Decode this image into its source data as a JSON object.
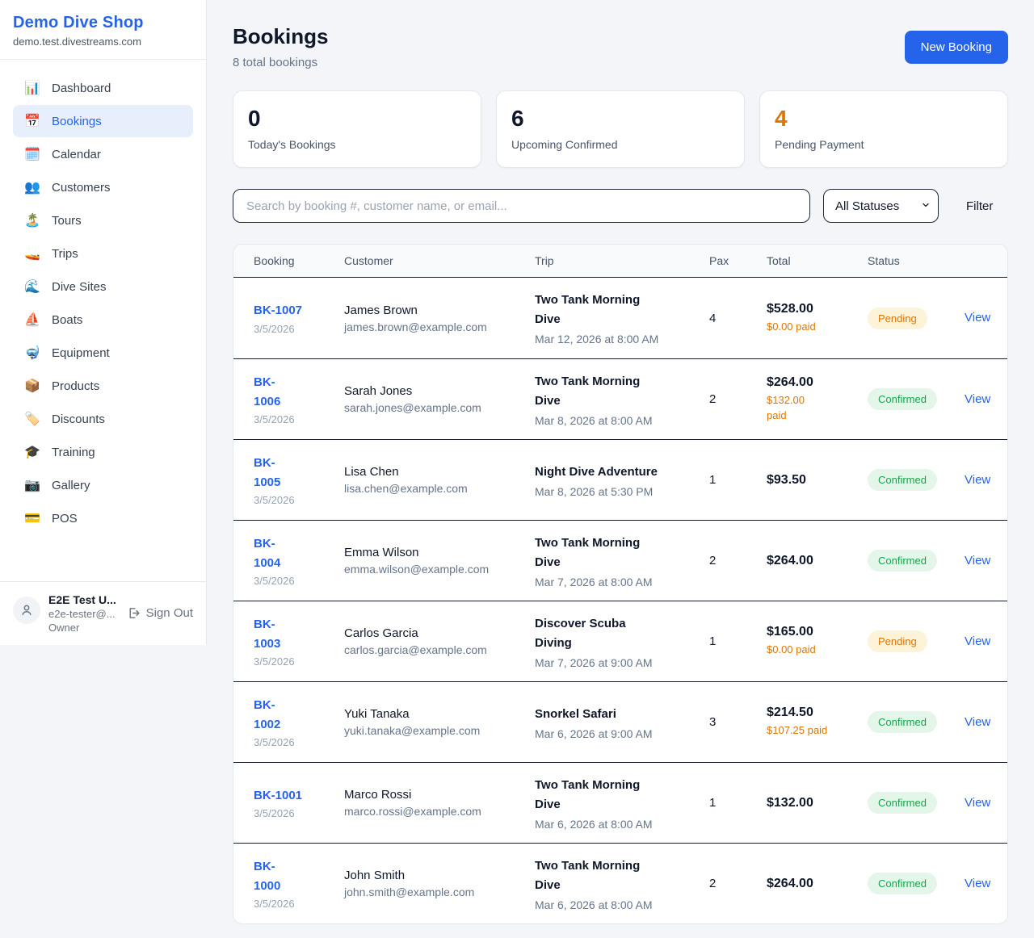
{
  "brand": {
    "name": "Demo Dive Shop",
    "domain": "demo.test.divestreams.com"
  },
  "sidebar": {
    "items": [
      {
        "slug": "dashboard",
        "icon": "📊",
        "label": "Dashboard",
        "active": false
      },
      {
        "slug": "bookings",
        "icon": "📅",
        "label": "Bookings",
        "active": true
      },
      {
        "slug": "calendar",
        "icon": "🗓️",
        "label": "Calendar",
        "active": false
      },
      {
        "slug": "customers",
        "icon": "👥",
        "label": "Customers",
        "active": false
      },
      {
        "slug": "tours",
        "icon": "🏝️",
        "label": "Tours",
        "active": false
      },
      {
        "slug": "trips",
        "icon": "🚤",
        "label": "Trips",
        "active": false
      },
      {
        "slug": "dive-sites",
        "icon": "🌊",
        "label": "Dive Sites",
        "active": false
      },
      {
        "slug": "boats",
        "icon": "⛵",
        "label": "Boats",
        "active": false
      },
      {
        "slug": "equipment",
        "icon": "🤿",
        "label": "Equipment",
        "active": false
      },
      {
        "slug": "products",
        "icon": "📦",
        "label": "Products",
        "active": false
      },
      {
        "slug": "discounts",
        "icon": "🏷️",
        "label": "Discounts",
        "active": false
      },
      {
        "slug": "training",
        "icon": "🎓",
        "label": "Training",
        "active": false
      },
      {
        "slug": "gallery",
        "icon": "📷",
        "label": "Gallery",
        "active": false
      },
      {
        "slug": "pos",
        "icon": "💳",
        "label": "POS",
        "active": false
      }
    ]
  },
  "user": {
    "name": "E2E Test U...",
    "email": "e2e-tester@...",
    "role": "Owner",
    "sign_out": "Sign Out"
  },
  "header": {
    "title": "Bookings",
    "subtitle": "8 total bookings",
    "new_booking_label": "New Booking"
  },
  "stats": [
    {
      "value": "0",
      "label": "Today's Bookings",
      "color": "#0f172a"
    },
    {
      "value": "6",
      "label": "Upcoming Confirmed",
      "color": "#0f172a"
    },
    {
      "value": "4",
      "label": "Pending Payment",
      "color": "#d97706"
    }
  ],
  "filters": {
    "search_placeholder": "Search by booking #, customer name, or email...",
    "status_selected": "All Statuses",
    "filter_label": "Filter"
  },
  "table": {
    "columns": [
      "Booking",
      "Customer",
      "Trip",
      "Pax",
      "Total",
      "Status",
      ""
    ],
    "view_label": "View",
    "rows": [
      {
        "number": "BK-1007",
        "split": false,
        "date": "3/5/2026",
        "name": "James Brown",
        "email": "james.brown@example.com",
        "trip": "Two Tank Morning Dive",
        "when": "Mar 12, 2026 at 8:00 AM",
        "pax": "4",
        "total": "$528.00",
        "paid": "$0.00 paid",
        "status": "Pending",
        "status_type": "pending"
      },
      {
        "number": "BK-1006",
        "split": true,
        "date": "3/5/2026",
        "name": "Sarah Jones",
        "email": "sarah.jones@example.com",
        "trip": "Two Tank Morning Dive",
        "when": "Mar 8, 2026 at 8:00 AM",
        "pax": "2",
        "total": "$264.00",
        "paid": "$132.00\npaid",
        "status": "Confirmed",
        "status_type": "confirmed"
      },
      {
        "number": "BK-1005",
        "split": true,
        "date": "3/5/2026",
        "name": "Lisa Chen",
        "email": "lisa.chen@example.com",
        "trip": "Night Dive Adventure",
        "when": "Mar 8, 2026 at 5:30 PM",
        "pax": "1",
        "total": "$93.50",
        "paid": "",
        "status": "Confirmed",
        "status_type": "confirmed"
      },
      {
        "number": "BK-1004",
        "split": true,
        "date": "3/5/2026",
        "name": "Emma Wilson",
        "email": "emma.wilson@example.com",
        "trip": "Two Tank Morning Dive",
        "when": "Mar 7, 2026 at 8:00 AM",
        "pax": "2",
        "total": "$264.00",
        "paid": "",
        "status": "Confirmed",
        "status_type": "confirmed"
      },
      {
        "number": "BK-1003",
        "split": true,
        "date": "3/5/2026",
        "name": "Carlos Garcia",
        "email": "carlos.garcia@example.com",
        "trip": "Discover Scuba Diving",
        "when": "Mar 7, 2026 at 9:00 AM",
        "pax": "1",
        "total": "$165.00",
        "paid": "$0.00 paid",
        "status": "Pending",
        "status_type": "pending"
      },
      {
        "number": "BK-1002",
        "split": true,
        "date": "3/5/2026",
        "name": "Yuki Tanaka",
        "email": "yuki.tanaka@example.com",
        "trip": "Snorkel Safari",
        "when": "Mar 6, 2026 at 9:00 AM",
        "pax": "3",
        "total": "$214.50",
        "paid": "$107.25 paid",
        "status": "Confirmed",
        "status_type": "confirmed"
      },
      {
        "number": "BK-1001",
        "split": false,
        "date": "3/5/2026",
        "name": "Marco Rossi",
        "email": "marco.rossi@example.com",
        "trip": "Two Tank Morning Dive",
        "when": "Mar 6, 2026 at 8:00 AM",
        "pax": "1",
        "total": "$132.00",
        "paid": "",
        "status": "Confirmed",
        "status_type": "confirmed"
      },
      {
        "number": "BK-1000",
        "split": true,
        "date": "3/5/2026",
        "name": "John Smith",
        "email": "john.smith@example.com",
        "trip": "Two Tank Morning Dive",
        "when": "Mar 6, 2026 at 8:00 AM",
        "pax": "2",
        "total": "$264.00",
        "paid": "",
        "status": "Confirmed",
        "status_type": "confirmed"
      }
    ]
  },
  "colors": {
    "accent_blue": "#2563eb",
    "pending_text": "#d97706",
    "pending_bg": "#fdf3d8",
    "confirmed_text": "#16a34a",
    "confirmed_bg": "#e4f6ea",
    "divider_dark": "#141b27"
  }
}
